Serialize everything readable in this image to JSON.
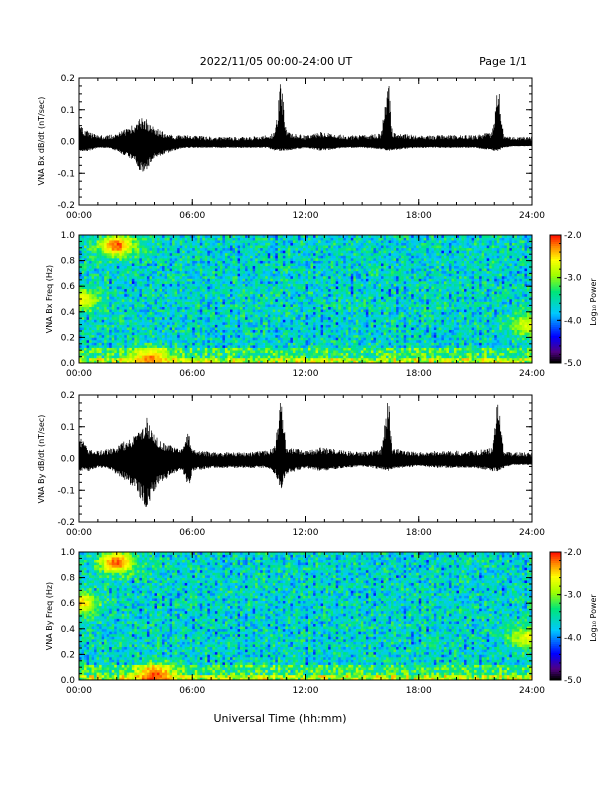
{
  "header": {
    "title": "2022/11/05  00:00-24:00 UT",
    "page": "Page 1/1"
  },
  "xlabel": "Universal Time (hh:mm)",
  "colors": {
    "trace": "#000000",
    "frame": "#000000",
    "background": "#ffffff"
  },
  "chart_data": [
    {
      "type": "line",
      "ylabel": "VNA Bx dB/dt (nT/sec)",
      "ylim": [
        -0.2,
        0.2
      ],
      "yticks": [
        "0.2",
        "0.1",
        "0.0",
        "-0.1",
        "-0.2"
      ],
      "xlim": [
        0,
        24
      ],
      "xticks": [
        "00:00",
        "06:00",
        "12:00",
        "18:00",
        "24:00"
      ],
      "series": [
        {
          "x_hours": [
            0,
            0.5,
            1,
            1.5,
            2,
            2.5,
            3,
            3.3,
            3.6,
            3.9,
            4.2,
            4.5,
            5,
            5.5,
            6,
            7,
            8,
            9,
            10,
            10.4,
            10.7,
            11,
            12,
            12.8,
            13.5,
            14,
            15,
            16,
            16.4,
            16.6,
            17,
            18,
            19,
            20,
            21,
            21.9,
            22.2,
            22.5,
            23,
            24
          ],
          "envelope_upper": [
            0.06,
            0.03,
            0.02,
            0.02,
            0.025,
            0.04,
            0.06,
            0.08,
            0.07,
            0.05,
            0.04,
            0.03,
            0.02,
            0.02,
            0.02,
            0.015,
            0.015,
            0.015,
            0.02,
            0.03,
            0.2,
            0.03,
            0.02,
            0.03,
            0.025,
            0.02,
            0.02,
            0.025,
            0.2,
            0.03,
            0.025,
            0.02,
            0.02,
            0.02,
            0.02,
            0.03,
            0.2,
            0.02,
            0.015,
            0.015
          ],
          "envelope_lower": [
            -0.03,
            -0.03,
            -0.02,
            -0.02,
            -0.03,
            -0.05,
            -0.07,
            -0.1,
            -0.09,
            -0.06,
            -0.05,
            -0.04,
            -0.03,
            -0.02,
            -0.02,
            -0.02,
            -0.02,
            -0.02,
            -0.02,
            -0.03,
            -0.03,
            -0.03,
            -0.02,
            -0.03,
            -0.025,
            -0.02,
            -0.02,
            -0.025,
            -0.03,
            -0.03,
            -0.025,
            -0.02,
            -0.02,
            -0.02,
            -0.02,
            -0.03,
            -0.03,
            -0.02,
            -0.015,
            -0.015
          ]
        }
      ]
    },
    {
      "type": "heatmap",
      "ylabel": "VNA Bx Freq (Hz)",
      "ylim": [
        0,
        1
      ],
      "yticks": [
        "1.0",
        "0.8",
        "0.6",
        "0.4",
        "0.2",
        "0.0"
      ],
      "xlim": [
        0,
        24
      ],
      "xticks": [
        "00:00",
        "06:00",
        "12:00",
        "18:00",
        "24:00"
      ],
      "colorbar": {
        "label": "Log₁₀ Power",
        "range": [
          -5.0,
          -2.0
        ],
        "ticks": [
          "-2.0",
          "-3.0",
          "-4.0",
          "-5.0"
        ]
      },
      "hot_spots": [
        {
          "t": 2.0,
          "f": 0.92,
          "level": -2.2
        },
        {
          "t": 0.1,
          "f": 0.5,
          "level": -2.6
        },
        {
          "t": 3.8,
          "f": 0.03,
          "level": -2.3
        },
        {
          "t": 23.8,
          "f": 0.3,
          "level": -2.7
        }
      ]
    },
    {
      "type": "line",
      "ylabel": "VNA By dB/dt (nT/sec)",
      "ylim": [
        -0.2,
        0.2
      ],
      "yticks": [
        "0.2",
        "0.1",
        "0.0",
        "-0.1",
        "-0.2"
      ],
      "xlim": [
        0,
        24
      ],
      "xticks": [
        "00:00",
        "06:00",
        "12:00",
        "18:00",
        "24:00"
      ],
      "series": [
        {
          "x_hours": [
            0,
            0.5,
            1,
            1.5,
            2,
            2.5,
            3,
            3.3,
            3.6,
            3.9,
            4.2,
            4.5,
            5,
            5.5,
            5.8,
            6,
            7,
            8,
            9,
            10,
            10.4,
            10.7,
            11,
            12,
            12.8,
            13.5,
            14,
            15,
            16,
            16.4,
            16.6,
            17,
            18,
            19,
            20,
            21,
            21.9,
            22.2,
            22.5,
            23,
            24
          ],
          "envelope_upper": [
            0.08,
            0.03,
            0.025,
            0.03,
            0.04,
            0.06,
            0.08,
            0.1,
            0.13,
            0.09,
            0.06,
            0.05,
            0.04,
            0.03,
            0.09,
            0.03,
            0.02,
            0.02,
            0.02,
            0.025,
            0.04,
            0.2,
            0.04,
            0.025,
            0.035,
            0.03,
            0.025,
            0.02,
            0.03,
            0.2,
            0.03,
            0.03,
            0.02,
            0.025,
            0.025,
            0.025,
            0.035,
            0.2,
            0.025,
            0.02,
            0.02
          ],
          "envelope_lower": [
            -0.04,
            -0.04,
            -0.03,
            -0.03,
            -0.05,
            -0.07,
            -0.1,
            -0.13,
            -0.16,
            -0.11,
            -0.08,
            -0.07,
            -0.05,
            -0.04,
            -0.1,
            -0.04,
            -0.03,
            -0.03,
            -0.03,
            -0.03,
            -0.05,
            -0.1,
            -0.05,
            -0.03,
            -0.04,
            -0.035,
            -0.03,
            -0.025,
            -0.035,
            -0.04,
            -0.035,
            -0.03,
            -0.025,
            -0.03,
            -0.03,
            -0.03,
            -0.04,
            -0.04,
            -0.03,
            -0.02,
            -0.02
          ]
        }
      ]
    },
    {
      "type": "heatmap",
      "ylabel": "VNA By Freq (Hz)",
      "ylim": [
        0,
        1
      ],
      "yticks": [
        "1.0",
        "0.8",
        "0.6",
        "0.4",
        "0.2",
        "0.0"
      ],
      "xlim": [
        0,
        24
      ],
      "xticks": [
        "00:00",
        "06:00",
        "12:00",
        "18:00",
        "24:00"
      ],
      "colorbar": {
        "label": "Log₁₀ Power",
        "range": [
          -5.0,
          -2.0
        ],
        "ticks": [
          "-2.0",
          "-3.0",
          "-4.0",
          "-5.0"
        ]
      },
      "hot_spots": [
        {
          "t": 2.0,
          "f": 0.92,
          "level": -2.2
        },
        {
          "t": 0.1,
          "f": 0.6,
          "level": -2.5
        },
        {
          "t": 4.0,
          "f": 0.04,
          "level": -2.1
        },
        {
          "t": 23.8,
          "f": 0.33,
          "level": -2.7
        }
      ]
    }
  ]
}
